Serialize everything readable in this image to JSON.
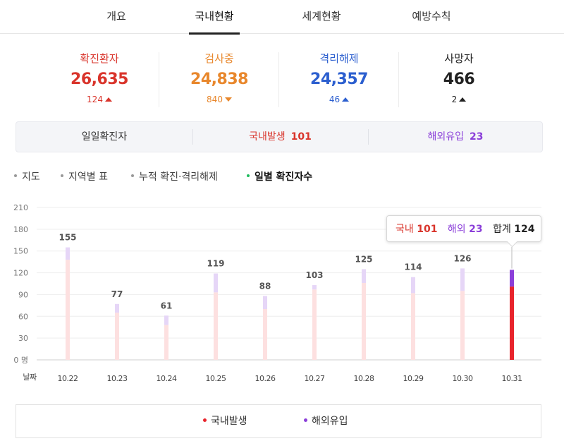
{
  "tabs": [
    {
      "label": "개요"
    },
    {
      "label": "국내현황"
    },
    {
      "label": "세계현황"
    },
    {
      "label": "예방수칙"
    }
  ],
  "active_tab": "국내현황",
  "stats": [
    {
      "label": "확진환자",
      "value": "26,635",
      "delta": "124",
      "direction": "up",
      "color": "#d9342b"
    },
    {
      "label": "검사중",
      "value": "24,838",
      "delta": "840",
      "direction": "down",
      "color": "#e8872c"
    },
    {
      "label": "격리해제",
      "value": "24,357",
      "delta": "46",
      "direction": "up",
      "color": "#2c5fcf"
    },
    {
      "label": "사망자",
      "value": "466",
      "delta": "2",
      "direction": "up",
      "color": "#222222"
    }
  ],
  "summary": {
    "title": "일일확진자",
    "domestic_label": "국내발생",
    "domestic_value": "101",
    "overseas_label": "해외유입",
    "overseas_value": "23"
  },
  "subnav": [
    {
      "label": "지도"
    },
    {
      "label": "지역별 표"
    },
    {
      "label": "누적 확진·격리해제"
    },
    {
      "label": "일별 확진자수"
    }
  ],
  "active_subnav": "일별 확진자수",
  "tooltip": {
    "domestic_label": "국내",
    "domestic_value": "101",
    "overseas_label": "해외",
    "overseas_value": "23",
    "total_label": "합계",
    "total_value": "124"
  },
  "legend": [
    {
      "label": "국내발생",
      "color": "#e8242c"
    },
    {
      "label": "해외유입",
      "color": "#8b3fd9"
    }
  ],
  "chart_data": {
    "type": "bar",
    "stacked": true,
    "x_title": "날짜",
    "categories": [
      "10.22",
      "10.23",
      "10.24",
      "10.25",
      "10.26",
      "10.27",
      "10.28",
      "10.29",
      "10.30",
      "10.31"
    ],
    "series": [
      {
        "name": "국내발생",
        "color": "#e8242c",
        "faded_color": "#fde0e0",
        "values": [
          138,
          65,
          48,
          93,
          70,
          97,
          106,
          92,
          95,
          101
        ]
      },
      {
        "name": "해외유입",
        "color": "#8b3fd9",
        "faded_color": "#e6d6f7",
        "values": [
          17,
          12,
          13,
          26,
          18,
          6,
          19,
          22,
          31,
          23
        ]
      }
    ],
    "totals": [
      155,
      77,
      61,
      119,
      88,
      103,
      125,
      114,
      126,
      124
    ],
    "yticks": [
      "0 명",
      "30",
      "60",
      "90",
      "120",
      "150",
      "180",
      "210"
    ],
    "ylim": [
      0,
      210
    ],
    "highlight_index": 9,
    "grid": true
  }
}
